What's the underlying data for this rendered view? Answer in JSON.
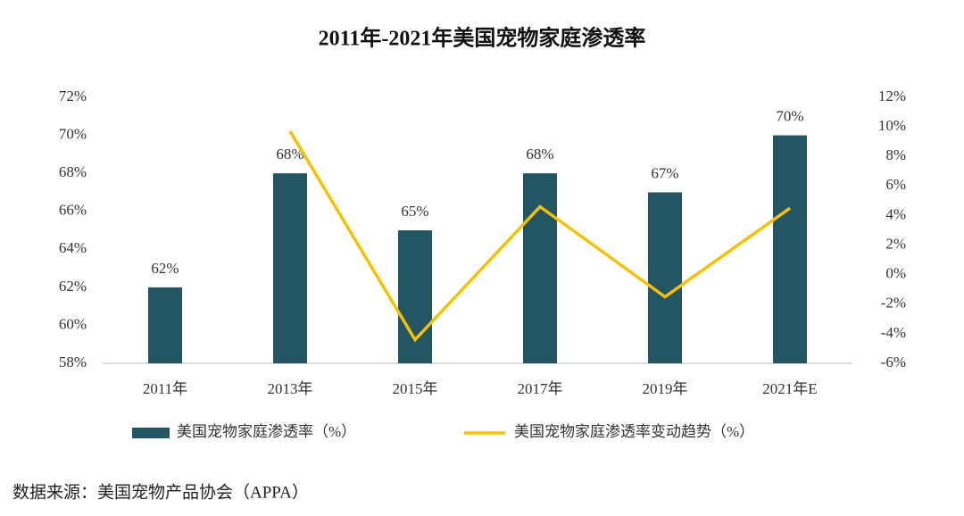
{
  "chart_data": {
    "type": "bar",
    "title": "2011年-2021年美国宠物家庭渗透率",
    "source": "数据来源：美国宠物产品协会（APPA）",
    "categories": [
      "2011年",
      "2013年",
      "2015年",
      "2017年",
      "2019年",
      "2021年E"
    ],
    "series": [
      {
        "name": "美国宠物家庭渗透率（%）",
        "type": "bar",
        "color": "#235563",
        "values": [
          62,
          68,
          65,
          68,
          67,
          70
        ],
        "value_labels": [
          "62%",
          "68%",
          "65%",
          "68%",
          "67%",
          "70%"
        ]
      },
      {
        "name": "美国宠物家庭渗透率变动趋势（%）",
        "type": "line",
        "color": "#f5c100",
        "axis": "y2",
        "values": [
          null,
          9.7,
          -4.4,
          4.6,
          -1.5,
          4.5
        ]
      }
    ],
    "ylim": [
      58,
      72
    ],
    "yticks": [
      {
        "value": 58,
        "label": "58%"
      },
      {
        "value": 60,
        "label": "60%"
      },
      {
        "value": 62,
        "label": "62%"
      },
      {
        "value": 64,
        "label": "64%"
      },
      {
        "value": 66,
        "label": "66%"
      },
      {
        "value": 68,
        "label": "68%"
      },
      {
        "value": 70,
        "label": "70%"
      },
      {
        "value": 72,
        "label": "72%"
      }
    ],
    "y2lim": [
      -6,
      12
    ],
    "y2ticks": [
      {
        "value": -6,
        "label": "-6%"
      },
      {
        "value": -4,
        "label": "-4%"
      },
      {
        "value": -2,
        "label": "-2%"
      },
      {
        "value": 0,
        "label": "0%"
      },
      {
        "value": 2,
        "label": "2%"
      },
      {
        "value": 4,
        "label": "4%"
      },
      {
        "value": 6,
        "label": "6%"
      },
      {
        "value": 8,
        "label": "8%"
      },
      {
        "value": 10,
        "label": "10%"
      },
      {
        "value": 12,
        "label": "12%"
      }
    ],
    "grid": false,
    "legend": "bottom"
  }
}
